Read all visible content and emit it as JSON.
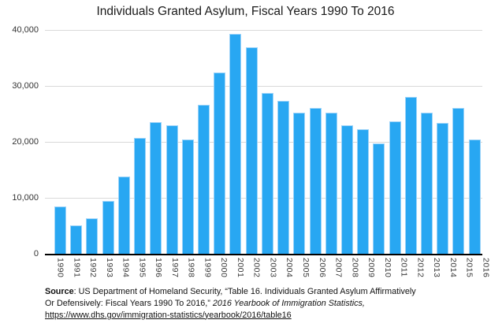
{
  "chart_data": {
    "type": "bar",
    "title": "Individuals Granted Asylum, Fiscal Years 1990 To 2016",
    "series_name": "Individuals granted asylum",
    "categories": [
      "1990",
      "1991",
      "1992",
      "1993",
      "1994",
      "1995",
      "1996",
      "1997",
      "1998",
      "1999",
      "2000",
      "2001",
      "2002",
      "2003",
      "2004",
      "2005",
      "2006",
      "2007",
      "2008",
      "2009",
      "2010",
      "2011",
      "2012",
      "2013",
      "2014",
      "2015",
      "2016"
    ],
    "values": [
      8472,
      5035,
      6307,
      9414,
      13817,
      20712,
      23508,
      22939,
      20425,
      26578,
      32382,
      39310,
      36894,
      28714,
      27321,
      25257,
      26113,
      25270,
      22930,
      22219,
      19730,
      23669,
      28026,
      25199,
      23374,
      26124,
      20455
    ],
    "xlabel": "",
    "ylabel": "",
    "ylim": [
      0,
      40000
    ],
    "ytick_values": [
      40000,
      30000,
      20000,
      10000,
      0
    ],
    "ytick_labels": [
      "40,000",
      "30,000",
      "20,000",
      "10,000",
      "0"
    ],
    "grid": "horizontal",
    "legend": "none",
    "x_label_rotation_deg": 90,
    "bar_color": "#28a7f2",
    "bar_edge_color": "#9cd3f9",
    "grid_color": "#d9d9d9",
    "axis_color": "#000000",
    "text_color": "#1a1a1a"
  },
  "source": {
    "label": "Source",
    "line1_rest": ": US Department of Homeland Security, “Table 16. Individuals Granted Asylum Affirmatively",
    "line2_regular": "Or Defensively: Fiscal Years 1990 To 2016,” ",
    "line2_italic": "2016 Yearbook of Immigration Statistics,",
    "link": "https://www.dhs.gov/immigration-statistics/yearbook/2016/table16"
  }
}
